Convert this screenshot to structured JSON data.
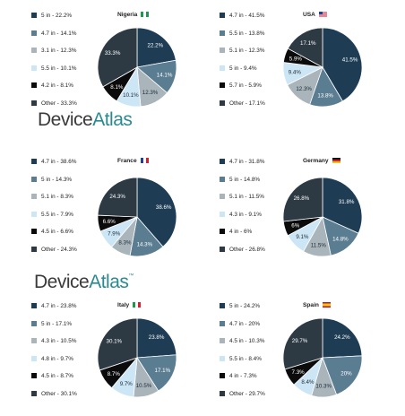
{
  "brand": {
    "name_part1": "Device",
    "name_part2": "Atlas",
    "mark": "™"
  },
  "colors": {
    "5in": "#1e3d55",
    "4.7in": "#5b7d92",
    "mid1": "#a9b4bb",
    "mid2": "#cde6f5",
    "small": "#0b0b0b",
    "other": "#2d3a44"
  },
  "chart_data": [
    {
      "type": "pie",
      "country": "Nigeria",
      "categories": [
        "5 in",
        "4.7 in",
        "3.1 in",
        "5.5 in",
        "4.2 in",
        "Other"
      ],
      "values": [
        22.2,
        14.1,
        12.3,
        10.1,
        8.1,
        33.3
      ],
      "legend": [
        "5 in - 22.2%",
        "4.7 in - 14.1%",
        "3.1 in - 12.3%",
        "5.5 in - 10.1%",
        "4.2 in - 8.1%",
        "Other - 33.3%"
      ],
      "slice_labels": [
        "22.2%",
        "14.1%",
        "12.3%",
        "10.1%",
        "8.1%",
        "33.3%"
      ],
      "colors": [
        "#1e3d55",
        "#5b7d92",
        "#a9b4bb",
        "#cde6f5",
        "#0b0b0b",
        "#2d3a44"
      ],
      "flag": "nigeria"
    },
    {
      "type": "pie",
      "country": "USA",
      "categories": [
        "4.7 in",
        "5.5 in",
        "5.1 in",
        "5 in",
        "5.7 in",
        "Other"
      ],
      "values": [
        41.5,
        13.8,
        12.3,
        9.4,
        5.9,
        17.1
      ],
      "legend": [
        "4.7 in - 41.5%",
        "5.5 in - 13.8%",
        "5.1 in - 12.3%",
        "5 in - 9.4%",
        "5.7 in - 5.9%",
        "Other - 17.1%"
      ],
      "slice_labels": [
        "41.5%",
        "13.8%",
        "12.3%",
        "9.4%",
        "5.9%",
        "17.1%"
      ],
      "colors": [
        "#1e3d55",
        "#5b7d92",
        "#a9b4bb",
        "#cde6f5",
        "#0b0b0b",
        "#2d3a44"
      ],
      "flag": "usa"
    },
    {
      "type": "pie",
      "country": "France",
      "categories": [
        "4.7 in",
        "5 in",
        "5.1 in",
        "5.5 in",
        "4.5 in",
        "Other"
      ],
      "values": [
        38.6,
        14.3,
        8.3,
        7.9,
        6.6,
        24.3
      ],
      "legend": [
        "4.7 in - 38.6%",
        "5 in - 14.3%",
        "5.1 in - 8.3%",
        "5.5 in - 7.9%",
        "4.5 in - 6.6%",
        "Other - 24.3%"
      ],
      "slice_labels": [
        "38.6%",
        "14.3%",
        "8.3%",
        "7.9%",
        "6.6%",
        "24.3%"
      ],
      "colors": [
        "#1e3d55",
        "#5b7d92",
        "#a9b4bb",
        "#cde6f5",
        "#0b0b0b",
        "#2d3a44"
      ],
      "flag": "france"
    },
    {
      "type": "pie",
      "country": "Germany",
      "categories": [
        "4.7 in",
        "5 in",
        "5.1 in",
        "4.3 in",
        "4 in",
        "Other"
      ],
      "values": [
        31.8,
        14.8,
        11.5,
        9.1,
        6,
        26.8
      ],
      "legend": [
        "4.7 in - 31.8%",
        "5 in - 14.8%",
        "5.1 in - 11.5%",
        "4.3 in - 9.1%",
        "4 in - 6%",
        "Other - 26.8%"
      ],
      "slice_labels": [
        "31.8%",
        "14.8%",
        "11.5%",
        "9.1%",
        "6%",
        "26.8%"
      ],
      "colors": [
        "#1e3d55",
        "#5b7d92",
        "#a9b4bb",
        "#cde6f5",
        "#0b0b0b",
        "#2d3a44"
      ],
      "flag": "germany"
    },
    {
      "type": "pie",
      "country": "Italy",
      "categories": [
        "4.7 in",
        "5 in",
        "4.3 in",
        "4.8 in",
        "4.5 in",
        "Other"
      ],
      "values": [
        23.8,
        17.1,
        10.5,
        9.7,
        8.7,
        30.1
      ],
      "legend": [
        "4.7 in - 23.8%",
        "5 in - 17.1%",
        "4.3 in - 10.5%",
        "4.8 in - 9.7%",
        "4.5 in - 8.7%",
        "Other - 30.1%"
      ],
      "slice_labels": [
        "23.8%",
        "17.1%",
        "10.5%",
        "9.7%",
        "8.7%",
        "30.1%"
      ],
      "colors": [
        "#1e3d55",
        "#5b7d92",
        "#a9b4bb",
        "#cde6f5",
        "#0b0b0b",
        "#2d3a44"
      ],
      "flag": "italy"
    },
    {
      "type": "pie",
      "country": "Spain",
      "categories": [
        "5 in",
        "4.7 in",
        "4.5 in",
        "5.5 in",
        "4 in",
        "Other"
      ],
      "values": [
        24.2,
        20,
        10.3,
        8.4,
        7.3,
        29.7
      ],
      "legend": [
        "5 in - 24.2%",
        "4.7 in - 20%",
        "4.5 in - 10.3%",
        "5.5 in - 8.4%",
        "4 in - 7.3%",
        "Other - 29.7%"
      ],
      "slice_labels": [
        "24.2%",
        "20%",
        "10.3%",
        "8.4%",
        "7.3%",
        "29.7%"
      ],
      "colors": [
        "#1e3d55",
        "#5b7d92",
        "#a9b4bb",
        "#cde6f5",
        "#0b0b0b",
        "#2d3a44"
      ],
      "flag": "spain"
    }
  ]
}
